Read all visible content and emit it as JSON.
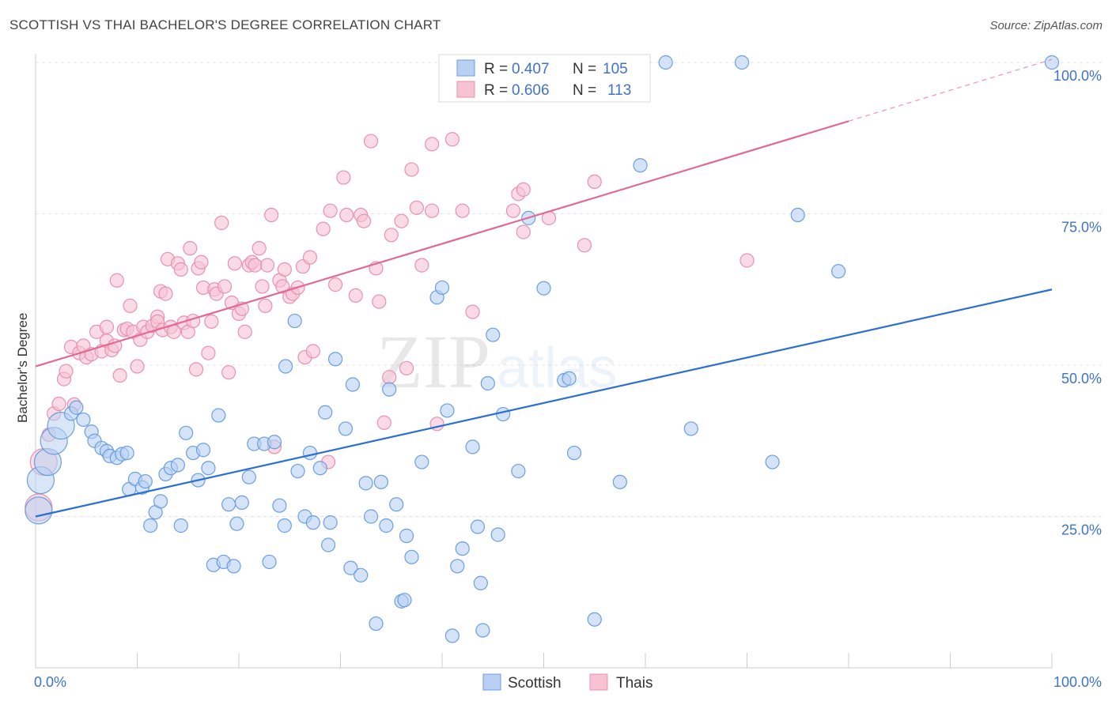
{
  "header": {
    "title": "SCOTTISH VS THAI BACHELOR'S DEGREE CORRELATION CHART",
    "source": "Source: ZipAtlas.com"
  },
  "watermark": {
    "zip": "ZIP",
    "atlas": "atlas"
  },
  "colors": {
    "scottish": "#6a9fe0",
    "scottish_fill": "#b8d1f3",
    "scottish_line": "#2a6fd1",
    "thais": "#e891ae",
    "thais_fill": "#f7c3d3",
    "thais_line": "#e06a92",
    "axis_label": "#3f73c8"
  },
  "chart_data": {
    "type": "scatter",
    "title": "SCOTTISH VS THAI BACHELOR'S DEGREE CORRELATION CHART",
    "xlabel": "",
    "ylabel": "Bachelor's Degree",
    "xlim": [
      0,
      100
    ],
    "ylim": [
      0,
      100
    ],
    "x_tick_labels": [
      "0.0%",
      "100.0%"
    ],
    "y_tick_labels": [
      "25.0%",
      "50.0%",
      "75.0%",
      "100.0%"
    ],
    "y_ticks": [
      25,
      50,
      75,
      100
    ],
    "grid": true,
    "legend": {
      "position": "top-center",
      "entries": [
        {
          "r_label": "R =",
          "r_value": "0.407",
          "n_label": "N =",
          "n_value": "105"
        },
        {
          "r_label": "R =",
          "r_value": "0.606",
          "n_label": "N =",
          "n_value": "113"
        }
      ]
    },
    "bottom_legend": [
      "Scottish",
      "Thais"
    ],
    "series": [
      {
        "name": "Scottish",
        "trend": {
          "x0": 0,
          "y0": 25.0,
          "x1": 100,
          "y1": 62.5
        },
        "points": [
          [
            0.3,
            26,
            "l"
          ],
          [
            0.5,
            31,
            "l"
          ],
          [
            1.2,
            34,
            "l"
          ],
          [
            1.8,
            37.5,
            "l"
          ],
          [
            2.5,
            40,
            "l"
          ],
          [
            3.5,
            42
          ],
          [
            4,
            43
          ],
          [
            4.7,
            41
          ],
          [
            5.5,
            39
          ],
          [
            5.8,
            37.5
          ],
          [
            6.5,
            36.3
          ],
          [
            7,
            35.8
          ],
          [
            7.3,
            35
          ],
          [
            8,
            34.7
          ],
          [
            8.5,
            35.3
          ],
          [
            9,
            35.5
          ],
          [
            9.2,
            29.5
          ],
          [
            9.8,
            31.2
          ],
          [
            10.5,
            29.8
          ],
          [
            10.8,
            30.8
          ],
          [
            11.3,
            23.5
          ],
          [
            11.8,
            25.7
          ],
          [
            12.3,
            27.5
          ],
          [
            12.8,
            32
          ],
          [
            13.3,
            33
          ],
          [
            14,
            33.5
          ],
          [
            14.3,
            23.5
          ],
          [
            14.8,
            38.8
          ],
          [
            15.5,
            35.5
          ],
          [
            16,
            31
          ],
          [
            16.5,
            36
          ],
          [
            17,
            33
          ],
          [
            17.5,
            17
          ],
          [
            18,
            41.7
          ],
          [
            18.5,
            17.5
          ],
          [
            19,
            27
          ],
          [
            19.5,
            16.8
          ],
          [
            19.8,
            23.8
          ],
          [
            20.3,
            27.3
          ],
          [
            21,
            31.5
          ],
          [
            21.5,
            37
          ],
          [
            22.5,
            37
          ],
          [
            23,
            17.5
          ],
          [
            23.5,
            37.3
          ],
          [
            24,
            26.8
          ],
          [
            24.5,
            23.5
          ],
          [
            24.6,
            49.8
          ],
          [
            25.5,
            57.3
          ],
          [
            25.8,
            32.5
          ],
          [
            26.5,
            25
          ],
          [
            27,
            35.5
          ],
          [
            27.3,
            24
          ],
          [
            28,
            33
          ],
          [
            28.5,
            42.2
          ],
          [
            28.8,
            20.3
          ],
          [
            29,
            24
          ],
          [
            29.5,
            51
          ],
          [
            30.5,
            39.5
          ],
          [
            31,
            16.5
          ],
          [
            31.2,
            46.8
          ],
          [
            32,
            15.3
          ],
          [
            32.5,
            30.5
          ],
          [
            33,
            25
          ],
          [
            33.5,
            7.3
          ],
          [
            34,
            30.7
          ],
          [
            34.5,
            23.5
          ],
          [
            34.8,
            46
          ],
          [
            35.5,
            27
          ],
          [
            36,
            11
          ],
          [
            36.3,
            11.2
          ],
          [
            36.5,
            21.8
          ],
          [
            37,
            18.3
          ],
          [
            38,
            34
          ],
          [
            39.5,
            61.2
          ],
          [
            40,
            62.8
          ],
          [
            40.5,
            42.5
          ],
          [
            41,
            5.3
          ],
          [
            41.5,
            16.8
          ],
          [
            42,
            19.7
          ],
          [
            43,
            36.5
          ],
          [
            43.5,
            23.3
          ],
          [
            43.8,
            14
          ],
          [
            44,
            6.2
          ],
          [
            44.5,
            47
          ],
          [
            45,
            55
          ],
          [
            45.5,
            22
          ],
          [
            46,
            41.9
          ],
          [
            47.5,
            32.5
          ],
          [
            48.5,
            74.3
          ],
          [
            50,
            62.7
          ],
          [
            52,
            47.5
          ],
          [
            52.5,
            47.8
          ],
          [
            53,
            35.5
          ],
          [
            55,
            8
          ],
          [
            57.5,
            30.7
          ],
          [
            59.5,
            83
          ],
          [
            62,
            100
          ],
          [
            64.5,
            39.5
          ],
          [
            69.5,
            100
          ],
          [
            72.5,
            34
          ],
          [
            75,
            74.8
          ],
          [
            79,
            65.5
          ],
          [
            100,
            100
          ]
        ]
      },
      {
        "name": "Thais",
        "trend": {
          "x0": 0,
          "y0": 49.8,
          "x1": 80,
          "y1": 90.3,
          "dashed_to": {
            "x": 100,
            "y": 100.5
          }
        },
        "points": [
          [
            0.3,
            26.5,
            "l"
          ],
          [
            0.8,
            34,
            "l"
          ],
          [
            1.3,
            38.5
          ],
          [
            1.8,
            42
          ],
          [
            2.3,
            43.6
          ],
          [
            2.8,
            47.7
          ],
          [
            3,
            49
          ],
          [
            3.5,
            53
          ],
          [
            3.8,
            43.5
          ],
          [
            4.3,
            52
          ],
          [
            4.7,
            53.2
          ],
          [
            5,
            51.3
          ],
          [
            5.5,
            51.8
          ],
          [
            6,
            55.5
          ],
          [
            6.5,
            52.3
          ],
          [
            7,
            54
          ],
          [
            7,
            56.3
          ],
          [
            7.5,
            52.5
          ],
          [
            7.8,
            53.2
          ],
          [
            8,
            64
          ],
          [
            8.3,
            48.3
          ],
          [
            8.7,
            55.8
          ],
          [
            9,
            56
          ],
          [
            9.3,
            59.8
          ],
          [
            9.6,
            55.5
          ],
          [
            10,
            49.8
          ],
          [
            10.3,
            54.2
          ],
          [
            10.6,
            56.3
          ],
          [
            11,
            55.5
          ],
          [
            11.5,
            56.5
          ],
          [
            12,
            58
          ],
          [
            12,
            57.2
          ],
          [
            12.3,
            62.2
          ],
          [
            12.5,
            55.8
          ],
          [
            12.8,
            61.8
          ],
          [
            13,
            67.5
          ],
          [
            13.3,
            56.3
          ],
          [
            13.6,
            55.5
          ],
          [
            14,
            66.8
          ],
          [
            14.3,
            65.8
          ],
          [
            14.6,
            57
          ],
          [
            15,
            55.5
          ],
          [
            15.2,
            69.3
          ],
          [
            15.5,
            57.3
          ],
          [
            15.8,
            49.3
          ],
          [
            16,
            66
          ],
          [
            16.3,
            67
          ],
          [
            16.5,
            62.8
          ],
          [
            17,
            52
          ],
          [
            17.3,
            57.2
          ],
          [
            17.6,
            62.5
          ],
          [
            17.8,
            61.8
          ],
          [
            18.3,
            73.5
          ],
          [
            18.6,
            63
          ],
          [
            19,
            48.8
          ],
          [
            19.3,
            60.3
          ],
          [
            19.6,
            66.8
          ],
          [
            20,
            58.5
          ],
          [
            20.3,
            59.3
          ],
          [
            20.6,
            55.5
          ],
          [
            21,
            66.5
          ],
          [
            21.3,
            67
          ],
          [
            21.6,
            66.5
          ],
          [
            22,
            69.3
          ],
          [
            22.3,
            63
          ],
          [
            22.6,
            59.8
          ],
          [
            22.8,
            66.5
          ],
          [
            23.2,
            74.8
          ],
          [
            23.5,
            36.5
          ],
          [
            24,
            64
          ],
          [
            24.3,
            63
          ],
          [
            24.5,
            65.8
          ],
          [
            25,
            61.3
          ],
          [
            25.3,
            61.8
          ],
          [
            25.8,
            62.8
          ],
          [
            26.3,
            66.3
          ],
          [
            26.5,
            51.3
          ],
          [
            27,
            67.8
          ],
          [
            27.3,
            52.3
          ],
          [
            28.3,
            72.5
          ],
          [
            28.8,
            34
          ],
          [
            29,
            75.5
          ],
          [
            29.5,
            63.3
          ],
          [
            30.3,
            81
          ],
          [
            30.6,
            74.8
          ],
          [
            31.5,
            61.5
          ],
          [
            32,
            74.8
          ],
          [
            32.3,
            73.8
          ],
          [
            33,
            87
          ],
          [
            33.5,
            66
          ],
          [
            33.8,
            60.5
          ],
          [
            34.3,
            40.5
          ],
          [
            34.8,
            48
          ],
          [
            35,
            71.5
          ],
          [
            36,
            73.8
          ],
          [
            36.5,
            49.5
          ],
          [
            37,
            82.3
          ],
          [
            37.5,
            76
          ],
          [
            38,
            66.5
          ],
          [
            39,
            86.5
          ],
          [
            39,
            75.5
          ],
          [
            39.5,
            40.3
          ],
          [
            41,
            87.3
          ],
          [
            42,
            75.5
          ],
          [
            43,
            58.8
          ],
          [
            47,
            75.5
          ],
          [
            47.5,
            78.3
          ],
          [
            48,
            79
          ],
          [
            48,
            72
          ],
          [
            50.5,
            74.3
          ],
          [
            54,
            69.8
          ],
          [
            55,
            80.3
          ],
          [
            70,
            67.3
          ]
        ]
      }
    ]
  }
}
